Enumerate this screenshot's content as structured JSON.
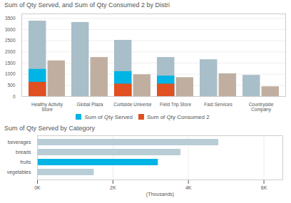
{
  "chart_data": [
    {
      "type": "bar",
      "title": "Sum of Qty Served, and Sum of Qty Consumed 2 by Distri",
      "categories": [
        "Healthy Activity\nStore",
        "Global Plaza",
        "Curbside Universe",
        "Field Trip Store",
        "Fast Services",
        "Countryside\nCompany"
      ],
      "series": [
        {
          "color": "#a8bec8",
          "values": [
            3380,
            3320,
            2520,
            1750,
            1650,
            950
          ]
        },
        {
          "color": "#c0afa0",
          "values": [
            1600,
            1750,
            980,
            850,
            1020,
            440
          ]
        },
        {
          "name": "Sum of Qty Served",
          "color": "#00b4e6",
          "values": [
            1220,
            0,
            1120,
            920,
            0,
            0
          ]
        },
        {
          "name": "Sum of Qty Consumed 2",
          "color": "#e05020",
          "values": [
            640,
            0,
            560,
            560,
            0,
            0
          ]
        }
      ],
      "ylim": [
        0,
        3700
      ],
      "yticks": [
        0,
        500,
        1000,
        1500,
        2000,
        2500,
        3000,
        3500
      ],
      "grid": true,
      "legend": "bottom"
    },
    {
      "type": "bar",
      "title": "Sum of Qty Served by Category",
      "orientation": "horizontal",
      "categories": [
        "beverages",
        "breads",
        "fruits",
        "vegetables"
      ],
      "values": [
        4800,
        3800,
        3200,
        1500
      ],
      "colors": [
        "#b8cdd6",
        "#b8cdd6",
        "#00b4e6",
        "#b8cdd6"
      ],
      "xlabel": "(Thousands)",
      "xlim": [
        0,
        6500
      ],
      "xticks": [
        {
          "value": 0,
          "label": "0K"
        },
        {
          "value": 2000,
          "label": "2K"
        },
        {
          "value": 4000,
          "label": "4K"
        },
        {
          "value": 6000,
          "label": "6K"
        }
      ],
      "grid": true
    }
  ]
}
